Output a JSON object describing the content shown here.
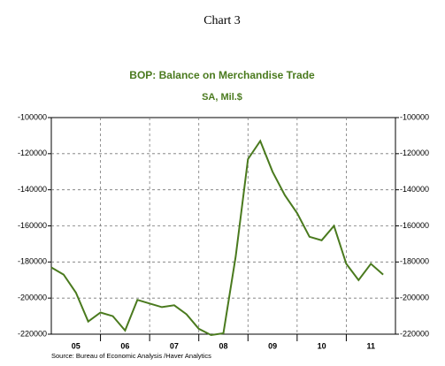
{
  "chart_data": {
    "type": "line",
    "heading": "Chart 3",
    "title": "BOP: Balance on Merchandise Trade",
    "subtitle": "SA, Mil.$",
    "source": "Source:  Bureau of Economic Analysis /Haver Analytics",
    "x": [
      2005,
      2005.25,
      2005.5,
      2005.75,
      2006,
      2006.25,
      2006.5,
      2006.75,
      2007,
      2007.25,
      2007.5,
      2007.75,
      2008,
      2008.25,
      2008.5,
      2008.75,
      2009,
      2009.25,
      2009.5,
      2009.75,
      2010,
      2010.25,
      2010.5,
      2010.75,
      2011,
      2011.25,
      2011.5,
      2011.75
    ],
    "series": [
      {
        "color": "#4a7a1e",
        "values": [
          -183000,
          -187000,
          -197000,
          -213000,
          -208000,
          -210000,
          -218000,
          -201000,
          -203000,
          -205000,
          -204000,
          -209000,
          -217000,
          -220500,
          -219500,
          -177000,
          -123000,
          -113000,
          -130000,
          -143000,
          -153000,
          -166000,
          -168000,
          -160000,
          -181000,
          -190000,
          -181000,
          -187000
        ]
      }
    ],
    "xlim": [
      2005,
      2012
    ],
    "xticks": [
      {
        "value": 2005.5,
        "label": "05"
      },
      {
        "value": 2006.5,
        "label": "06"
      },
      {
        "value": 2007.5,
        "label": "07"
      },
      {
        "value": 2008.5,
        "label": "08"
      },
      {
        "value": 2009.5,
        "label": "09"
      },
      {
        "value": 2010.5,
        "label": "10"
      },
      {
        "value": 2011.5,
        "label": "11"
      }
    ],
    "xgrid": [
      2006,
      2007,
      2008,
      2009,
      2010,
      2011
    ],
    "ylim": [
      -220000,
      -100000
    ],
    "yticks": [
      -100000,
      -120000,
      -140000,
      -160000,
      -180000,
      -200000,
      -220000
    ],
    "grid": true
  }
}
